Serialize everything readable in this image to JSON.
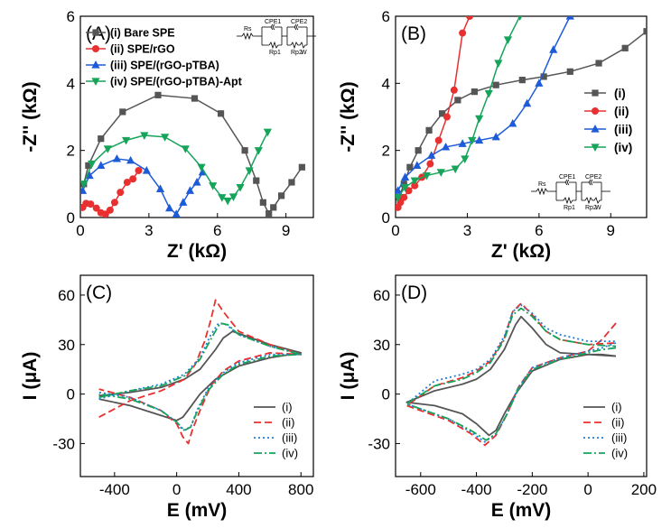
{
  "chart_data": [
    {
      "panel": "(A)",
      "type": "line",
      "xlabel": "Z' (kΩ)",
      "ylabel": "-Z'' (kΩ)",
      "xlim": [
        0,
        10.2
      ],
      "ylim": [
        0,
        6
      ],
      "xticks": [
        0,
        3,
        6,
        9
      ],
      "yticks": [
        0,
        2,
        4,
        6
      ],
      "legend_position": "top-right",
      "circuit": {
        "labels": [
          "Rs",
          "CPE1",
          "CPE2",
          "Rp1",
          "Rp2",
          "W"
        ]
      },
      "series": [
        {
          "name": "(i) Bare SPE",
          "color": "#555555",
          "marker": "square",
          "x": [
            0.15,
            0.35,
            0.9,
            1.85,
            3.4,
            5.0,
            6.15,
            7.2,
            7.7,
            8.0,
            8.25,
            8.45,
            8.8,
            9.25,
            9.7
          ],
          "y": [
            1.0,
            1.55,
            2.35,
            3.15,
            3.65,
            3.55,
            3.1,
            2.0,
            1.1,
            0.45,
            0.12,
            0.3,
            0.65,
            1.05,
            1.5
          ]
        },
        {
          "name": "(ii) SPE/rGO",
          "color": "#e83030",
          "marker": "circle",
          "x": [
            0.1,
            0.25,
            0.45,
            0.7,
            0.9,
            1.1,
            1.3,
            1.5,
            1.75,
            2.05,
            2.3,
            2.55
          ],
          "y": [
            0.3,
            0.42,
            0.4,
            0.28,
            0.14,
            0.1,
            0.22,
            0.45,
            0.75,
            1.05,
            1.15,
            1.4
          ]
        },
        {
          "name": "(iii) SPE/(rGO-pTBA)",
          "color": "#1e5bd8",
          "marker": "triangle-up",
          "x": [
            0.1,
            0.4,
            0.9,
            1.6,
            2.2,
            2.9,
            3.5,
            3.9,
            4.2,
            4.5,
            4.8,
            5.1,
            5.35
          ],
          "y": [
            0.8,
            1.25,
            1.55,
            1.75,
            1.7,
            1.4,
            0.85,
            0.28,
            0.1,
            0.45,
            0.8,
            1.05,
            1.35
          ]
        },
        {
          "name": "(iv) SPE/(rGO-pTBA)-Apt",
          "color": "#16a35a",
          "marker": "triangle-down",
          "x": [
            0.15,
            0.5,
            1.2,
            2.0,
            2.8,
            3.7,
            4.6,
            5.3,
            5.8,
            6.2,
            6.45,
            6.7,
            7.0,
            7.4,
            7.8,
            8.2
          ],
          "y": [
            1.0,
            1.6,
            2.05,
            2.3,
            2.45,
            2.4,
            2.05,
            1.5,
            0.95,
            0.6,
            0.5,
            0.62,
            0.9,
            1.4,
            2.0,
            2.55
          ]
        }
      ]
    },
    {
      "panel": "(B)",
      "type": "line",
      "xlabel": "Z' (kΩ)",
      "ylabel": "-Z'' (kΩ)",
      "xlim": [
        0,
        10.5
      ],
      "ylim": [
        0,
        6
      ],
      "xticks": [
        0,
        3,
        6,
        9
      ],
      "yticks": [
        0,
        2,
        4,
        6
      ],
      "legend_position": "center-right",
      "circuit": {
        "labels": [
          "Rs",
          "CPE1",
          "CPE2",
          "Rp1",
          "Rp2",
          "W"
        ]
      },
      "series": [
        {
          "name": "(i)",
          "color": "#555555",
          "marker": "square",
          "x": [
            0.15,
            0.35,
            0.6,
            0.95,
            1.4,
            1.95,
            2.6,
            3.3,
            4.2,
            5.3,
            6.2,
            7.3,
            8.5,
            9.6,
            10.5
          ],
          "y": [
            0.6,
            1.0,
            1.5,
            2.0,
            2.6,
            3.1,
            3.5,
            3.75,
            3.95,
            4.1,
            4.2,
            4.35,
            4.6,
            5.05,
            5.55
          ]
        },
        {
          "name": "(ii)",
          "color": "#e83030",
          "marker": "circle",
          "x": [
            0.1,
            0.2,
            0.35,
            0.55,
            0.8,
            1.1,
            1.45,
            1.8,
            2.15,
            2.45,
            2.8,
            3.1
          ],
          "y": [
            0.3,
            0.45,
            0.6,
            0.8,
            0.95,
            1.2,
            1.6,
            2.3,
            3.0,
            3.8,
            5.5,
            6.0
          ]
        },
        {
          "name": "(iii)",
          "color": "#1e5bd8",
          "marker": "triangle-up",
          "x": [
            0.1,
            0.4,
            0.9,
            1.5,
            2.1,
            2.8,
            3.5,
            4.2,
            4.9,
            5.5,
            6.0,
            6.6,
            7.3
          ],
          "y": [
            0.8,
            1.2,
            1.55,
            1.85,
            2.1,
            2.2,
            2.3,
            2.4,
            2.8,
            3.4,
            4.0,
            5.0,
            6.0
          ]
        },
        {
          "name": "(iv)",
          "color": "#16a35a",
          "marker": "triangle-down",
          "x": [
            0.1,
            0.4,
            0.8,
            1.3,
            1.9,
            2.5,
            2.9,
            3.2,
            3.5,
            3.9,
            4.3,
            4.7,
            5.2
          ],
          "y": [
            0.6,
            0.9,
            1.1,
            1.25,
            1.35,
            1.45,
            1.75,
            2.3,
            2.95,
            3.7,
            4.6,
            5.3,
            6.0
          ]
        }
      ]
    },
    {
      "panel": "(C)",
      "type": "line",
      "xlabel": "E (mV)",
      "ylabel": "I (μA)",
      "xlim": [
        -620,
        880
      ],
      "ylim": [
        -50,
        72
      ],
      "xticks": [
        -400,
        0,
        400,
        800
      ],
      "yticks": [
        -30,
        0,
        30,
        60
      ],
      "legend_position": "bottom-right",
      "series": [
        {
          "name": "(i)",
          "color": "#555555",
          "dash": "solid",
          "forward_x": [
            -500,
            -300,
            -100,
            50,
            150,
            250,
            300,
            360,
            450,
            600,
            800
          ],
          "forward_y": [
            -1,
            1,
            4,
            9,
            15,
            27,
            34,
            38,
            35,
            30,
            25
          ],
          "reverse_x": [
            800,
            600,
            400,
            250,
            150,
            80,
            40,
            0,
            -100,
            -300,
            -500
          ],
          "reverse_y": [
            25,
            22,
            17,
            9,
            0,
            -9,
            -14,
            -16,
            -13,
            -7,
            -3
          ]
        },
        {
          "name": "(ii)",
          "color": "#e83030",
          "dash": "8 4",
          "forward_x": [
            -500,
            -300,
            -100,
            50,
            120,
            180,
            220,
            250,
            300,
            400,
            600,
            800
          ],
          "forward_y": [
            -14,
            -4,
            2,
            9,
            18,
            32,
            45,
            57,
            50,
            38,
            30,
            24
          ],
          "reverse_x": [
            800,
            600,
            400,
            300,
            220,
            150,
            100,
            75,
            40,
            0,
            -100,
            -300,
            -500
          ],
          "reverse_y": [
            27,
            25,
            20,
            14,
            5,
            -10,
            -22,
            -30,
            -26,
            -18,
            -10,
            -2,
            3
          ]
        },
        {
          "name": "(iii)",
          "color": "#1e7fd8",
          "dash": "2 3",
          "forward_x": [
            -500,
            -300,
            -100,
            50,
            150,
            220,
            270,
            320,
            400,
            600,
            800
          ],
          "forward_y": [
            -3,
            2,
            6,
            12,
            22,
            36,
            43,
            42,
            36,
            29,
            24
          ],
          "reverse_x": [
            800,
            600,
            400,
            300,
            200,
            130,
            90,
            40,
            0,
            -100,
            -300,
            -500
          ],
          "reverse_y": [
            26,
            24,
            19,
            13,
            3,
            -10,
            -20,
            -22,
            -17,
            -10,
            -2,
            1
          ]
        },
        {
          "name": "(iv)",
          "color": "#16a35a",
          "dash": "9 3 2 3",
          "forward_x": [
            -500,
            -300,
            -100,
            50,
            150,
            230,
            280,
            330,
            400,
            600,
            800
          ],
          "forward_y": [
            -2,
            2,
            5,
            11,
            21,
            35,
            43,
            42,
            36,
            29,
            24
          ],
          "reverse_x": [
            800,
            600,
            400,
            300,
            200,
            130,
            90,
            50,
            0,
            -100,
            -300,
            -500
          ],
          "reverse_y": [
            25,
            23,
            18,
            12,
            2,
            -11,
            -20,
            -22,
            -17,
            -10,
            -3,
            0
          ]
        }
      ]
    },
    {
      "panel": "(D)",
      "type": "line",
      "xlabel": "E (mV)",
      "ylabel": "I (μA)",
      "xlim": [
        -690,
        210
      ],
      "ylim": [
        -50,
        72
      ],
      "xticks": [
        -600,
        -400,
        -200,
        0,
        200
      ],
      "yticks": [
        -30,
        0,
        30,
        60
      ],
      "legend_position": "bottom-right",
      "series": [
        {
          "name": "(i)",
          "color": "#555555",
          "dash": "solid",
          "forward_x": [
            100,
            50,
            0,
            -100,
            -200,
            -260,
            -300,
            -330,
            -355,
            -400,
            -450,
            -550,
            -650
          ],
          "forward_y": [
            23,
            24,
            24,
            21,
            14,
            0,
            -12,
            -22,
            -25,
            -18,
            -12,
            -7,
            -5
          ],
          "reverse_x": [
            -650,
            -550,
            -450,
            -400,
            -350,
            -300,
            -260,
            -240,
            -200,
            -150,
            -100,
            0,
            100
          ],
          "reverse_y": [
            -2,
            2,
            6,
            9,
            15,
            27,
            42,
            47,
            40,
            30,
            25,
            24,
            23
          ]
        },
        {
          "name": "(ii)",
          "color": "#e83030",
          "dash": "8 4",
          "forward_x": [
            100,
            50,
            0,
            -100,
            -200,
            -250,
            -290,
            -330,
            -370,
            -420,
            -500,
            -600,
            -650
          ],
          "forward_y": [
            43,
            33,
            26,
            22,
            16,
            4,
            -12,
            -25,
            -31,
            -24,
            -16,
            -10,
            -7
          ],
          "reverse_x": [
            -650,
            -550,
            -450,
            -400,
            -350,
            -300,
            -270,
            -240,
            -200,
            -150,
            -100,
            0,
            100
          ],
          "reverse_y": [
            -1,
            5,
            10,
            14,
            20,
            34,
            50,
            55,
            48,
            38,
            33,
            30,
            31
          ]
        },
        {
          "name": "(iii)",
          "color": "#1e7fd8",
          "dash": "2 3",
          "forward_x": [
            100,
            50,
            0,
            -100,
            -200,
            -250,
            -290,
            -330,
            -370,
            -420,
            -500,
            -600,
            -650
          ],
          "forward_y": [
            31,
            28,
            26,
            22,
            16,
            4,
            -12,
            -24,
            -29,
            -23,
            -15,
            -9,
            -6
          ],
          "reverse_x": [
            -650,
            -550,
            -450,
            -400,
            -350,
            -300,
            -270,
            -240,
            -200,
            -150,
            -100,
            0,
            100
          ],
          "reverse_y": [
            2,
            8,
            12,
            15,
            21,
            35,
            50,
            54,
            49,
            40,
            36,
            32,
            32
          ]
        },
        {
          "name": "(iv)",
          "color": "#16a35a",
          "dash": "9 3 2 3",
          "forward_x": [
            100,
            50,
            0,
            -100,
            -200,
            -250,
            -290,
            -330,
            -365,
            -420,
            -500,
            -600,
            -650
          ],
          "forward_y": [
            28,
            27,
            25,
            21,
            15,
            3,
            -12,
            -24,
            -28,
            -22,
            -15,
            -9,
            -6
          ],
          "reverse_x": [
            -650,
            -550,
            -450,
            -400,
            -350,
            -300,
            -270,
            -240,
            -200,
            -150,
            -100,
            0,
            100
          ],
          "reverse_y": [
            0,
            5,
            9,
            13,
            19,
            33,
            48,
            52,
            47,
            38,
            33,
            30,
            29
          ]
        }
      ]
    }
  ]
}
